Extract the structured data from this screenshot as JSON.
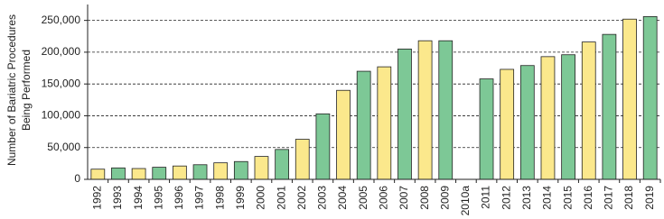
{
  "chart_data": {
    "type": "bar",
    "y_label": [
      "Number of Bariatric Procedures",
      "Being Performed"
    ],
    "categories": [
      "1992",
      "1993",
      "1994",
      "1995",
      "1996",
      "1997",
      "1998",
      "1999",
      "2000",
      "2001",
      "2002",
      "2003",
      "2004",
      "2005",
      "2006",
      "2007",
      "2008",
      "2009",
      "2010a",
      "2011",
      "2012",
      "2013",
      "2014",
      "2015",
      "2016",
      "2017",
      "2018",
      "2019"
    ],
    "values": [
      16000,
      18000,
      17000,
      19000,
      21000,
      23000,
      26000,
      28000,
      36000,
      47000,
      63000,
      103000,
      140000,
      170000,
      177000,
      205000,
      218000,
      218000,
      null,
      158000,
      173000,
      179000,
      193000,
      196000,
      216000,
      228000,
      252000,
      256000
    ],
    "colors": [
      "#fbe88c",
      "#7dc896",
      "#fbe88c",
      "#7dc896",
      "#fbe88c",
      "#7dc896",
      "#fbe88c",
      "#7dc896",
      "#fbe88c",
      "#7dc896",
      "#fbe88c",
      "#7dc896",
      "#fbe88c",
      "#7dc896",
      "#fbe88c",
      "#7dc896",
      "#fbe88c",
      "#7dc896",
      null,
      "#7dc896",
      "#fbe88c",
      "#7dc896",
      "#fbe88c",
      "#7dc896",
      "#fbe88c",
      "#7dc896",
      "#fbe88c",
      "#7dc896"
    ],
    "ylim": [
      0,
      275000
    ],
    "yticks": [
      0,
      {
        "value": 50000,
        "label": "50,000"
      },
      {
        "value": 100000,
        "label": "100,000"
      },
      {
        "value": 150000,
        "label": "150,000"
      },
      {
        "value": 200000,
        "label": "200,000"
      },
      {
        "value": 250000,
        "label": "250,000"
      }
    ],
    "grid": true
  }
}
